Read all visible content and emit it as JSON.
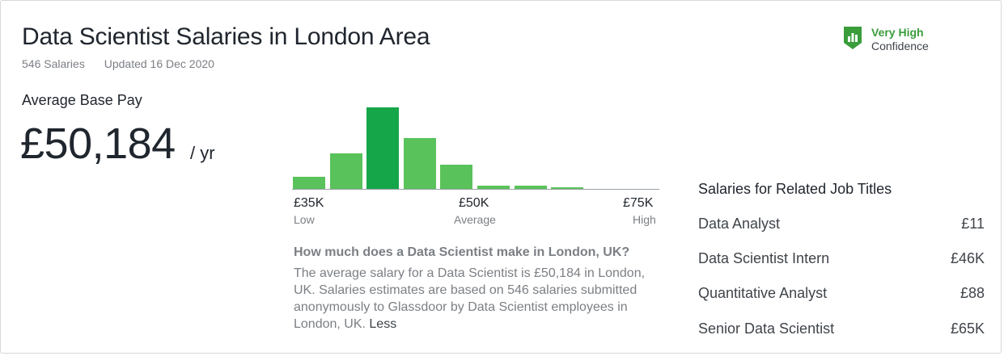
{
  "header": {
    "title": "Data Scientist Salaries in London Area",
    "salary_count": "546 Salaries",
    "updated": "Updated 16 Dec 2020"
  },
  "confidence": {
    "level": "Very High",
    "label": "Confidence",
    "icon": "shield-bar-chart-icon",
    "color": "#3a9d3a"
  },
  "average": {
    "label": "Average Base Pay",
    "value": "£50,184",
    "unit": "/ yr"
  },
  "chart_data": {
    "type": "bar",
    "values": [
      0.12,
      0.33,
      0.75,
      0.47,
      0.23,
      0.04,
      0.04,
      0.02,
      0.01,
      0.01
    ],
    "active_index": 2,
    "ticks": [
      {
        "value": "£35K",
        "sub": "Low"
      },
      {
        "value": "£50K",
        "sub": "Average"
      },
      {
        "value": "£75K",
        "sub": "High"
      }
    ],
    "colors": {
      "bar": "#5ac25a",
      "active": "#16a64a"
    }
  },
  "info": {
    "question": "How much does a Data Scientist make in London, UK?",
    "answer": "The average salary for a Data Scientist is £50,184 in London, UK. Salaries estimates are based on 546 salaries submitted anonymously to Glassdoor by Data Scientist employees in London, UK.",
    "less_link": "Less"
  },
  "related": {
    "title": "Salaries for Related Job Titles",
    "items": [
      {
        "job": "Data Analyst",
        "pay": "£11"
      },
      {
        "job": "Data Scientist Intern",
        "pay": "£46K"
      },
      {
        "job": "Quantitative Analyst",
        "pay": "£88"
      },
      {
        "job": "Senior Data Scientist",
        "pay": "£65K"
      }
    ]
  }
}
